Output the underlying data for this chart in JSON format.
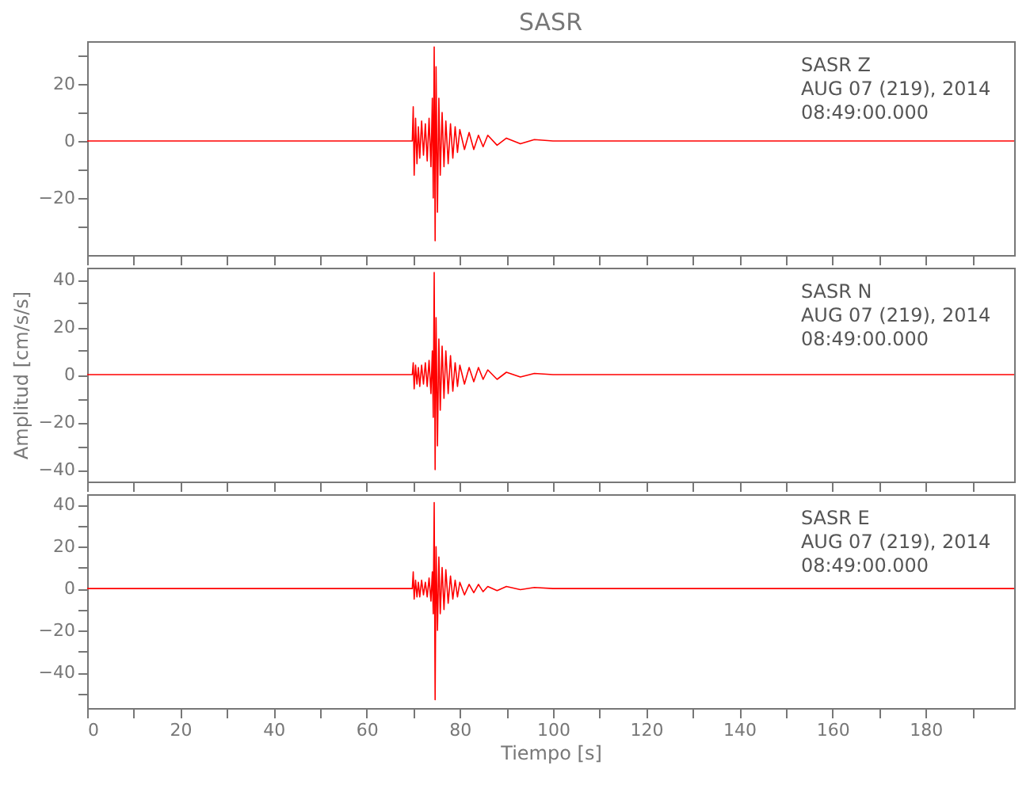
{
  "chart_data": [
    {
      "type": "line",
      "title": "SASR",
      "annotations": [
        "SASR Z",
        "AUG 07 (219), 2014",
        "08:49:00.000"
      ],
      "tick_labels": "y",
      "grid": false,
      "x": [
        0,
        69.8,
        70.0,
        70.2,
        70.5,
        70.8,
        71.1,
        71.4,
        71.8,
        72.2,
        72.6,
        73.0,
        73.4,
        73.8,
        74.1,
        74.3,
        74.5,
        74.7,
        74.9,
        75.2,
        75.5,
        75.8,
        76.2,
        76.6,
        77.0,
        77.5,
        78.0,
        78.5,
        79.0,
        79.5,
        80.0,
        81.0,
        82.0,
        83.0,
        84.0,
        85.0,
        86.0,
        88.0,
        90.0,
        93.0,
        96.0,
        100.0,
        199.0
      ],
      "series": [
        {
          "color": "#ff0000",
          "values": [
            0,
            0,
            12,
            -12,
            8,
            -8,
            5,
            -6,
            7,
            -5,
            6,
            -7,
            8,
            -9,
            15,
            -20,
            33,
            -35,
            26,
            -25,
            15,
            -12,
            10,
            -9,
            7,
            -8,
            6,
            -6,
            5,
            -4,
            4,
            -3,
            3,
            -3,
            2,
            -2,
            2,
            -1.5,
            1,
            -1,
            0.5,
            0,
            0
          ]
        }
      ],
      "xlim": [
        0,
        199
      ],
      "xticks": [
        0,
        {
          "value": 10,
          "label": null
        },
        20,
        {
          "value": 30,
          "label": null
        },
        40,
        {
          "value": 50,
          "label": null
        },
        60,
        {
          "value": 70,
          "label": null
        },
        80,
        {
          "value": 90,
          "label": null
        },
        100,
        {
          "value": 110,
          "label": null
        },
        120,
        {
          "value": 130,
          "label": null
        },
        140,
        {
          "value": 150,
          "label": null
        },
        160,
        {
          "value": 170,
          "label": null
        },
        180,
        {
          "value": 190,
          "label": null
        }
      ],
      "ylim": [
        -40,
        35
      ],
      "yticks": [
        {
          "value": -30,
          "label": null
        },
        -20,
        {
          "value": -10,
          "label": null
        },
        0,
        {
          "value": 10,
          "label": null
        },
        20,
        {
          "value": 30,
          "label": null
        }
      ]
    },
    {
      "type": "line",
      "ylabel": "Amplitud [cm/s/s]",
      "annotations": [
        "SASR N",
        "AUG 07 (219), 2014",
        "08:49:00.000"
      ],
      "tick_labels": "y",
      "grid": false,
      "x": [
        0,
        69.8,
        70.0,
        70.2,
        70.5,
        70.8,
        71.1,
        71.4,
        71.8,
        72.2,
        72.6,
        73.0,
        73.4,
        73.8,
        74.1,
        74.3,
        74.5,
        74.7,
        74.9,
        75.2,
        75.5,
        75.8,
        76.2,
        76.6,
        77.0,
        77.5,
        78.0,
        78.5,
        79.0,
        79.5,
        80.0,
        81.0,
        82.0,
        83.0,
        84.0,
        85.0,
        86.0,
        88.0,
        90.0,
        93.0,
        96.0,
        100.0,
        199.0
      ],
      "series": [
        {
          "color": "#ff0000",
          "values": [
            0,
            0,
            5,
            -6,
            4,
            -4,
            3,
            -5,
            4,
            -4,
            5,
            -5,
            6,
            -8,
            10,
            -18,
            43,
            -40,
            24,
            -30,
            15,
            -15,
            12,
            -10,
            10,
            -8,
            8,
            -7,
            5,
            -5,
            4,
            -4,
            3,
            -3,
            3,
            -2,
            2,
            -2,
            1,
            -1,
            0.5,
            0,
            0
          ]
        }
      ],
      "xlim": [
        0,
        199
      ],
      "xticks": [
        0,
        {
          "value": 10,
          "label": null
        },
        20,
        {
          "value": 30,
          "label": null
        },
        40,
        {
          "value": 50,
          "label": null
        },
        60,
        {
          "value": 70,
          "label": null
        },
        80,
        {
          "value": 90,
          "label": null
        },
        100,
        {
          "value": 110,
          "label": null
        },
        120,
        {
          "value": 130,
          "label": null
        },
        140,
        {
          "value": 150,
          "label": null
        },
        160,
        {
          "value": 170,
          "label": null
        },
        180,
        {
          "value": 190,
          "label": null
        }
      ],
      "ylim": [
        -45,
        45
      ],
      "yticks": [
        -40,
        {
          "value": -30,
          "label": null
        },
        -20,
        {
          "value": -10,
          "label": null
        },
        0,
        {
          "value": 10,
          "label": null
        },
        20,
        {
          "value": 30,
          "label": null
        },
        40
      ]
    },
    {
      "type": "line",
      "xlabel": "Tiempo [s]",
      "annotations": [
        "SASR E",
        "AUG 07 (219), 2014",
        "08:49:00.000"
      ],
      "grid": false,
      "x": [
        0,
        69.8,
        70.0,
        70.2,
        70.5,
        70.8,
        71.1,
        71.4,
        71.8,
        72.2,
        72.6,
        73.0,
        73.4,
        73.8,
        74.1,
        74.3,
        74.5,
        74.7,
        74.9,
        75.2,
        75.5,
        75.8,
        76.2,
        76.6,
        77.0,
        77.5,
        78.0,
        78.5,
        79.0,
        79.5,
        80.0,
        81.0,
        82.0,
        83.0,
        84.0,
        85.0,
        86.0,
        88.0,
        90.0,
        93.0,
        96.0,
        100.0,
        199.0
      ],
      "series": [
        {
          "color": "#ff0000",
          "values": [
            0,
            0,
            8,
            -5,
            4,
            -4,
            3,
            -4,
            4,
            -3,
            3,
            -4,
            5,
            -6,
            8,
            -12,
            41,
            -53,
            20,
            -20,
            15,
            -12,
            10,
            -10,
            9,
            -7,
            6,
            -5,
            4,
            -4,
            3,
            -3,
            2,
            -2,
            2,
            -1.5,
            1,
            -1,
            1,
            -0.5,
            0.5,
            0,
            0
          ]
        }
      ],
      "xlim": [
        0,
        199
      ],
      "xticks": [
        0,
        {
          "value": 10,
          "label": null
        },
        20,
        {
          "value": 30,
          "label": null
        },
        40,
        {
          "value": 50,
          "label": null
        },
        60,
        {
          "value": 70,
          "label": null
        },
        80,
        {
          "value": 90,
          "label": null
        },
        100,
        {
          "value": 110,
          "label": null
        },
        120,
        {
          "value": 130,
          "label": null
        },
        140,
        {
          "value": 150,
          "label": null
        },
        160,
        {
          "value": 170,
          "label": null
        },
        180,
        {
          "value": 190,
          "label": null
        }
      ],
      "ylim": [
        -57,
        45
      ],
      "yticks": [
        {
          "value": -50,
          "label": null
        },
        -40,
        {
          "value": -30,
          "label": null
        },
        -20,
        {
          "value": -10,
          "label": null
        },
        0,
        {
          "value": 10,
          "label": null
        },
        20,
        {
          "value": 30,
          "label": null
        },
        40
      ]
    }
  ]
}
